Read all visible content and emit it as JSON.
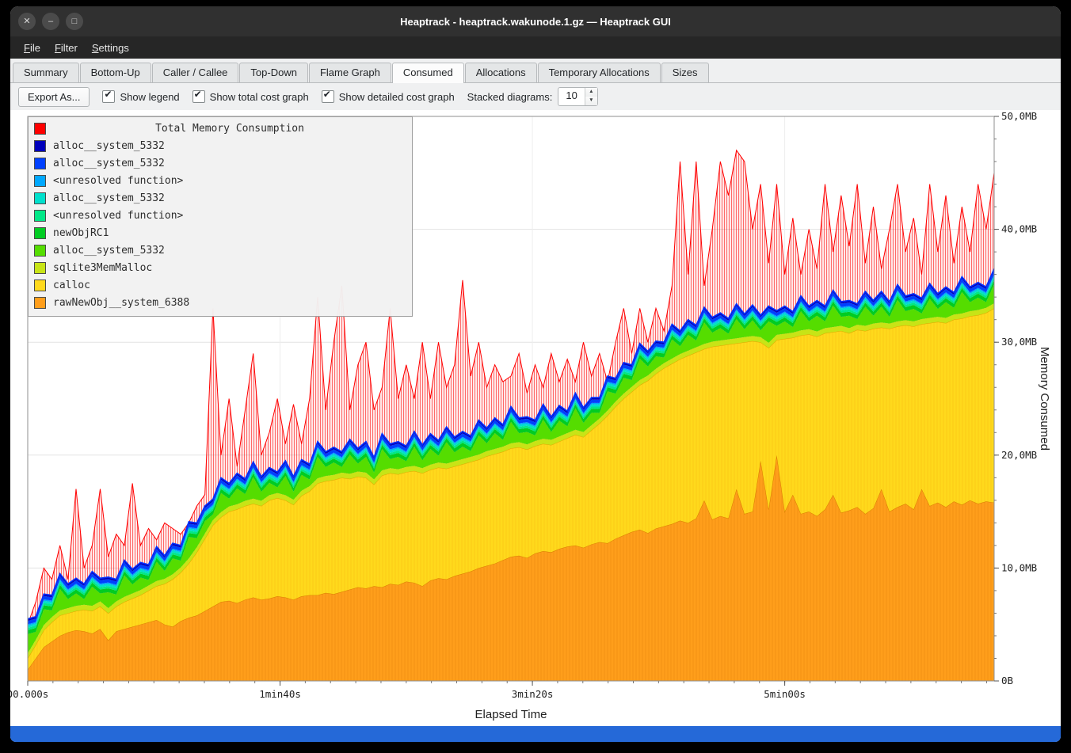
{
  "window": {
    "title": "Heaptrack - heaptrack.wakunode.1.gz — Heaptrack GUI",
    "controls": [
      {
        "name": "close",
        "glyph": "✕"
      },
      {
        "name": "minimize",
        "glyph": "–"
      },
      {
        "name": "maximize",
        "glyph": "□"
      }
    ]
  },
  "menu": {
    "items": [
      "File",
      "Filter",
      "Settings"
    ]
  },
  "tabs": {
    "items": [
      "Summary",
      "Bottom-Up",
      "Caller / Callee",
      "Top-Down",
      "Flame Graph",
      "Consumed",
      "Allocations",
      "Temporary Allocations",
      "Sizes"
    ],
    "active": "Consumed"
  },
  "toolbar": {
    "export_label": "Export As...",
    "checkboxes": [
      {
        "label": "Show legend",
        "checked": true
      },
      {
        "label": "Show total cost graph",
        "checked": true
      },
      {
        "label": "Show detailed cost graph",
        "checked": true
      }
    ],
    "stacked_label": "Stacked diagrams:",
    "stacked_value": "10"
  },
  "status_bar": {
    "color": "#2569d8"
  },
  "chart_data": {
    "type": "area",
    "title": "Total Memory Consumption",
    "xlabel": "Elapsed Time",
    "ylabel": "Memory Consumed",
    "ylim": [
      0,
      50
    ],
    "x_max_seconds": 383,
    "x_minor_step_s": 10,
    "grid": true,
    "top_edge_color": "#0030ff",
    "y_ticks": [
      {
        "v": 0,
        "label": "0B"
      },
      {
        "v": 10,
        "label": "10,0MB"
      },
      {
        "v": 20,
        "label": "20,0MB"
      },
      {
        "v": 30,
        "label": "30,0MB"
      },
      {
        "v": 40,
        "label": "40,0MB"
      },
      {
        "v": 50,
        "label": "50,0MB"
      }
    ],
    "x_ticks": [
      {
        "s": 0,
        "label": "00.000s"
      },
      {
        "s": 100,
        "label": "1min40s"
      },
      {
        "s": 200,
        "label": "3min20s"
      },
      {
        "s": 300,
        "label": "5min00s"
      }
    ],
    "total": {
      "name": "Total Memory Consumption",
      "color": "#ff0000",
      "values": [
        5,
        7,
        10,
        9,
        12,
        9,
        17,
        10,
        12,
        17,
        11,
        13,
        12,
        17.5,
        12,
        13.5,
        12.5,
        14,
        13.5,
        13,
        14,
        15.5,
        16.5,
        33,
        20,
        25,
        19,
        24,
        29,
        20,
        22,
        25,
        21,
        24.5,
        21,
        25,
        34,
        24,
        30,
        35,
        24,
        28,
        30,
        24,
        26,
        33,
        25,
        28,
        25,
        30,
        25,
        30,
        26,
        28,
        35.5,
        27,
        30,
        26,
        28,
        26.5,
        27,
        29,
        25.5,
        28,
        26,
        29,
        26.5,
        28.5,
        26.5,
        30,
        27,
        29,
        26.5,
        30,
        33,
        29,
        33,
        30,
        33,
        31,
        35,
        46,
        36,
        46,
        35,
        40,
        46,
        43,
        47,
        46,
        40,
        44,
        37,
        44,
        36,
        41,
        36,
        40,
        36.5,
        44,
        38,
        43,
        38.5,
        44,
        37,
        42,
        36.5,
        40,
        44,
        38,
        41,
        36,
        44,
        38,
        43,
        37,
        42,
        38,
        44,
        40,
        45
      ]
    },
    "stack": [
      {
        "name": "rawNewObj__system_6388",
        "color": "#ff9e1b",
        "edge": "#d97b00",
        "pattern": "orange",
        "values": [
          1.0,
          2.0,
          3.0,
          3.5,
          4.0,
          4.3,
          4.5,
          4.4,
          4.2,
          4.6,
          3.6,
          4.4,
          4.6,
          4.8,
          5.0,
          5.2,
          5.4,
          5.0,
          4.8,
          5.3,
          5.6,
          5.8,
          6.2,
          6.6,
          7.0,
          7.1,
          6.9,
          7.2,
          7.4,
          7.2,
          7.3,
          7.5,
          7.4,
          7.2,
          7.5,
          7.6,
          7.6,
          7.8,
          7.7,
          7.9,
          8.1,
          8.3,
          8.2,
          8.4,
          8.3,
          8.6,
          8.5,
          8.8,
          8.7,
          8.4,
          8.9,
          9.1,
          9.0,
          9.3,
          9.5,
          9.7,
          10.0,
          10.2,
          10.4,
          10.7,
          11.0,
          11.1,
          10.9,
          11.3,
          11.5,
          11.4,
          11.7,
          11.9,
          12.0,
          11.8,
          12.1,
          12.3,
          12.2,
          12.6,
          12.9,
          13.2,
          13.4,
          13.1,
          13.5,
          13.7,
          13.9,
          14.2,
          14.0,
          14.4,
          16.0,
          14.3,
          14.6,
          14.4,
          17.0,
          14.8,
          15.0,
          19.5,
          15.2,
          20.0,
          15.0,
          16.5,
          14.8,
          15.0,
          14.6,
          15.2,
          16.5,
          14.9,
          15.1,
          15.4,
          14.8,
          15.3,
          17.0,
          15.0,
          15.4,
          15.7,
          15.2,
          17.0,
          15.5,
          15.8,
          15.4,
          15.9,
          15.6,
          16.0,
          15.7,
          15.9,
          15.8
        ]
      },
      {
        "name": "calloc",
        "color": "#ffd91c",
        "edge": "#e0a500",
        "pattern": "yellow",
        "values": [
          2.0,
          3.2,
          4.5,
          5.2,
          5.8,
          6.0,
          6.2,
          6.3,
          6.2,
          6.6,
          6.0,
          6.6,
          7.0,
          7.3,
          7.6,
          8.0,
          8.4,
          8.6,
          9.0,
          9.6,
          10.4,
          11.4,
          12.6,
          13.8,
          14.5,
          15.0,
          15.2,
          15.5,
          15.7,
          15.5,
          16.0,
          16.2,
          16.0,
          15.6,
          16.4,
          16.8,
          17.5,
          17.7,
          17.8,
          18.0,
          17.9,
          18.1,
          18.0,
          17.4,
          18.2,
          18.4,
          18.3,
          18.5,
          18.6,
          18.4,
          18.7,
          18.9,
          18.8,
          19.0,
          19.2,
          19.4,
          19.6,
          19.9,
          20.1,
          20.3,
          20.6,
          20.7,
          20.5,
          20.8,
          21.0,
          20.9,
          21.2,
          21.5,
          21.8,
          21.6,
          22.2,
          22.8,
          23.5,
          24.3,
          25.0,
          25.6,
          26.2,
          26.6,
          27.2,
          27.7,
          28.1,
          28.5,
          28.8,
          29.1,
          29.4,
          29.6,
          29.7,
          29.8,
          29.9,
          30.0,
          30.1,
          30.0,
          29.5,
          30.2,
          30.3,
          30.4,
          30.6,
          30.7,
          30.5,
          30.8,
          30.9,
          31.0,
          30.8,
          31.1,
          31.0,
          31.2,
          31.3,
          31.2,
          31.4,
          31.5,
          31.4,
          31.6,
          31.7,
          31.8,
          31.7,
          32.0,
          32.1,
          32.3,
          32.4,
          32.6,
          33.0
        ]
      },
      {
        "name": "sqlite3MemMalloc",
        "color": "#c8e416",
        "offset": 0.45
      },
      {
        "name": "alloc__system_5332",
        "color": "#55dd00",
        "thickness_pattern": [
          1.7,
          0.7,
          1.4,
          0.6,
          1.9,
          0.8,
          1.1,
          0.5
        ]
      },
      {
        "name": "newObjRC1",
        "color": "#00cc22",
        "offset": 0.35
      },
      {
        "name": "<unresolved function>",
        "color": "#00e887",
        "offset": 0.2
      },
      {
        "name": "alloc__system_5332",
        "color": "#00e0cc",
        "offset": 0.2
      },
      {
        "name": "<unresolved function>",
        "color": "#00a8ff",
        "offset": 0.12
      },
      {
        "name": "alloc__system_5332",
        "color": "#0040ff",
        "offset": 0.3
      },
      {
        "name": "alloc__system_5332",
        "color": "#0000bb",
        "offset": 0.18
      }
    ],
    "legend": {
      "title": "Total Memory Consumption",
      "title_color": "#ff0000",
      "items": [
        {
          "color": "#0000bb",
          "label": "alloc__system_5332"
        },
        {
          "color": "#0040ff",
          "label": "alloc__system_5332"
        },
        {
          "color": "#00a8ff",
          "label": "<unresolved function>"
        },
        {
          "color": "#00e0cc",
          "label": "alloc__system_5332"
        },
        {
          "color": "#00e887",
          "label": "<unresolved function>"
        },
        {
          "color": "#00cc22",
          "label": "newObjRC1"
        },
        {
          "color": "#55dd00",
          "label": "alloc__system_5332"
        },
        {
          "color": "#c8e416",
          "label": "sqlite3MemMalloc"
        },
        {
          "color": "#ffd91c",
          "label": "calloc"
        },
        {
          "color": "#ff9e1b",
          "label": "rawNewObj__system_6388"
        }
      ]
    }
  }
}
